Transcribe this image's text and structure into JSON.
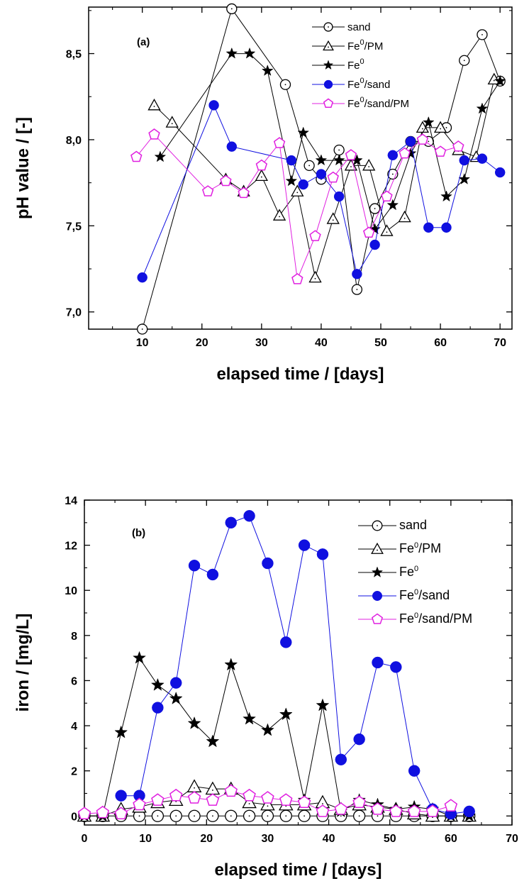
{
  "chart_data": [
    {
      "type": "line",
      "panel_label": "(a)",
      "xlabel": "elapsed time / [days]",
      "ylabel": "pH value / [-]",
      "xlim": [
        1,
        72
      ],
      "ylim": [
        6.9,
        8.77
      ],
      "xticks": [
        "10",
        "20",
        "30",
        "40",
        "50",
        "60",
        "70"
      ],
      "yticks": [
        "7,0",
        "7,5",
        "8,0",
        "8,5"
      ],
      "legend_position": "top-right",
      "series": [
        {
          "name": "sand",
          "marker": "open-circle",
          "color": "#000000",
          "x": [
            10,
            25,
            34,
            38,
            40,
            43,
            46,
            49,
            52,
            55,
            58,
            61,
            64,
            67,
            70
          ],
          "y": [
            6.9,
            8.76,
            8.32,
            7.85,
            7.77,
            7.94,
            7.13,
            7.6,
            7.8,
            7.99,
            7.99,
            8.07,
            8.46,
            8.61,
            8.34
          ]
        },
        {
          "name": "Fe0/PM",
          "marker": "open-triangle",
          "color": "#000000",
          "x": [
            12,
            15,
            24,
            27,
            30,
            33,
            36,
            39,
            42,
            45,
            48,
            51,
            54,
            57,
            60,
            63,
            66,
            69
          ],
          "y": [
            8.2,
            8.1,
            7.77,
            7.7,
            7.79,
            7.56,
            7.7,
            7.2,
            7.54,
            7.85,
            7.85,
            7.47,
            7.55,
            8.07,
            8.07,
            7.94,
            7.9,
            8.35
          ]
        },
        {
          "name": "Fe0",
          "marker": "star",
          "color": "#000000",
          "x": [
            13,
            25,
            28,
            31,
            35,
            37,
            40,
            43,
            46,
            49,
            52,
            55,
            58,
            61,
            64,
            67,
            70
          ],
          "y": [
            7.9,
            8.5,
            8.5,
            8.4,
            7.76,
            8.04,
            7.88,
            7.88,
            7.88,
            7.48,
            7.62,
            7.92,
            8.1,
            7.67,
            7.77,
            8.18,
            8.34
          ]
        },
        {
          "name": "Fe0/sand",
          "marker": "filled-circle",
          "color": "#1010e0",
          "x": [
            10,
            22,
            25,
            35,
            37,
            40,
            43,
            46,
            49,
            52,
            55,
            58,
            61,
            64,
            67,
            70
          ],
          "y": [
            7.2,
            8.2,
            7.96,
            7.88,
            7.74,
            7.8,
            7.67,
            7.22,
            7.39,
            7.91,
            7.99,
            7.49,
            7.49,
            7.88,
            7.89,
            7.81
          ]
        },
        {
          "name": "Fe0/sand/PM",
          "marker": "open-pentagon",
          "color": "#e020e0",
          "x": [
            9,
            12,
            21,
            24,
            27,
            30,
            33,
            36,
            39,
            42,
            45,
            48,
            51,
            54,
            57,
            60,
            63
          ],
          "y": [
            7.9,
            8.03,
            7.7,
            7.76,
            7.69,
            7.85,
            7.98,
            7.19,
            7.44,
            7.78,
            7.91,
            7.46,
            7.67,
            7.92,
            8.0,
            7.93,
            7.96
          ]
        }
      ]
    },
    {
      "type": "line",
      "panel_label": "(b)",
      "xlabel": "elapsed time / [days]",
      "ylabel": "iron / [mg/L]",
      "xlim": [
        0,
        70
      ],
      "ylim": [
        -0.4,
        14
      ],
      "xticks": [
        "0",
        "10",
        "20",
        "30",
        "40",
        "50",
        "60",
        "70"
      ],
      "yticks": [
        "0",
        "2",
        "4",
        "6",
        "8",
        "10",
        "12",
        "14"
      ],
      "legend_position": "top-right",
      "series": [
        {
          "name": "sand",
          "marker": "open-circle",
          "color": "#000000",
          "x": [
            0,
            3,
            6,
            9,
            12,
            15,
            18,
            21,
            24,
            27,
            30,
            33,
            36,
            39,
            42,
            45,
            48,
            51,
            54,
            57,
            60,
            63
          ],
          "y": [
            0,
            0,
            0,
            0,
            0,
            0,
            0,
            0,
            0,
            0,
            0,
            0,
            0,
            0,
            0,
            0,
            0,
            0,
            0,
            0,
            0,
            0
          ]
        },
        {
          "name": "Fe0/PM",
          "marker": "open-triangle",
          "color": "#000000",
          "x": [
            0,
            3,
            6,
            9,
            12,
            15,
            18,
            21,
            24,
            27,
            30,
            33,
            36,
            39,
            42,
            45,
            48,
            51,
            54,
            57,
            60,
            63
          ],
          "y": [
            0,
            0,
            0.3,
            0.4,
            0.6,
            0.7,
            1.3,
            1.2,
            1.2,
            0.6,
            0.5,
            0.5,
            0.5,
            0.6,
            0.3,
            0.5,
            0.4,
            0.3,
            0.1,
            0,
            0,
            0
          ]
        },
        {
          "name": "Fe0",
          "marker": "star",
          "color": "#000000",
          "x": [
            0,
            3,
            6,
            9,
            12,
            15,
            18,
            21,
            24,
            27,
            30,
            33,
            36,
            39,
            42,
            45,
            48,
            51,
            54,
            57,
            60,
            63
          ],
          "y": [
            0,
            0,
            3.7,
            7.0,
            5.8,
            5.2,
            4.1,
            3.3,
            6.7,
            4.3,
            3.8,
            4.5,
            0.7,
            4.9,
            0.2,
            0.7,
            0.5,
            0.3,
            0.4,
            0.3,
            0,
            0
          ]
        },
        {
          "name": "Fe0/sand",
          "marker": "filled-circle",
          "color": "#1010e0",
          "x": [
            6,
            9,
            12,
            15,
            18,
            21,
            24,
            27,
            30,
            33,
            36,
            39,
            42,
            45,
            48,
            51,
            54,
            57,
            60,
            63
          ],
          "y": [
            0.9,
            0.9,
            4.8,
            5.9,
            11.1,
            10.7,
            13.0,
            13.3,
            11.2,
            7.7,
            12.0,
            11.6,
            2.5,
            3.4,
            6.8,
            6.6,
            2.0,
            0.3,
            0.1,
            0.2
          ]
        },
        {
          "name": "Fe0/sand/PM",
          "marker": "open-pentagon",
          "color": "#e020e0",
          "x": [
            0,
            3,
            6,
            9,
            12,
            15,
            18,
            21,
            24,
            27,
            30,
            33,
            36,
            39,
            42,
            45,
            48,
            51,
            54,
            57,
            60
          ],
          "y": [
            0.1,
            0.15,
            0.1,
            0.5,
            0.7,
            0.9,
            0.8,
            0.7,
            1.1,
            0.9,
            0.8,
            0.7,
            0.6,
            0.2,
            0.3,
            0.6,
            0.3,
            0.2,
            0.2,
            0.2,
            0.45
          ]
        }
      ]
    }
  ]
}
